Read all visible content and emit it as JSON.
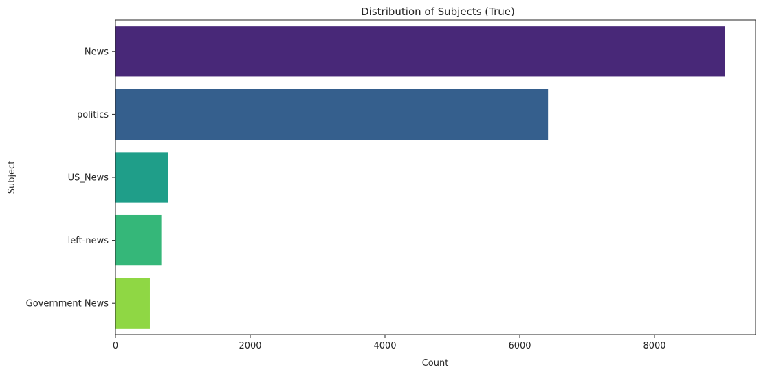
{
  "chart_data": {
    "type": "bar",
    "orientation": "horizontal",
    "title": "Distribution of Subjects (True)",
    "xlabel": "Count",
    "ylabel": "Subject",
    "categories": [
      "News",
      "politics",
      "US_News",
      "left-news",
      "Government News"
    ],
    "values": [
      9050,
      6420,
      780,
      680,
      510
    ],
    "colors": [
      "#482878",
      "#355f8d",
      "#1f9e89",
      "#35b779",
      "#8fd744"
    ],
    "xlim": [
      0,
      9500
    ],
    "xticks": [
      0,
      2000,
      4000,
      6000,
      8000
    ],
    "grid": false,
    "legend": "none"
  }
}
